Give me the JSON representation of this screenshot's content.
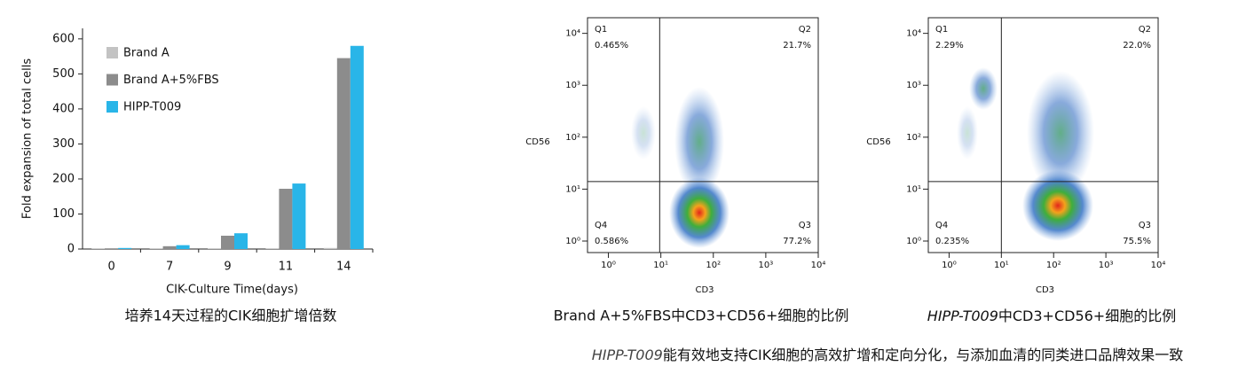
{
  "chart_data": [
    {
      "type": "bar",
      "title": "培养14天过程的CIK细胞扩增倍数",
      "x_label": "CIK-Culture Time(days)",
      "y_label": "Fold expansion of total cells",
      "categories": [
        "0",
        "7",
        "9",
        "11",
        "14"
      ],
      "series": [
        {
          "name": "Brand A",
          "color": "#c3c3c3",
          "values": [
            1,
            1,
            2,
            2,
            3
          ]
        },
        {
          "name": "Brand A+5%FBS",
          "color": "#8c8c8c",
          "values": [
            2,
            8,
            38,
            172,
            545
          ]
        },
        {
          "name": "HIPP-T009",
          "color": "#29b5e8",
          "values": [
            3,
            11,
            45,
            187,
            580
          ]
        }
      ],
      "ylim": [
        0,
        630
      ],
      "yticks": [
        0,
        100,
        200,
        300,
        400,
        500,
        600
      ]
    },
    {
      "type": "scatter",
      "title": "Brand A+5%FBS中CD3+CD56+细胞的比例",
      "x_label": "CD3",
      "y_label": "CD56",
      "log_scale": true,
      "xlim": [
        0.4,
        10000
      ],
      "ylim": [
        0.6,
        20000
      ],
      "xticks": [
        {
          "value": 1,
          "label": "10⁰"
        },
        {
          "value": 10,
          "label": "10¹"
        },
        {
          "value": 100,
          "label": "10²"
        },
        {
          "value": 1000,
          "label": "10³"
        },
        {
          "value": 10000,
          "label": "10⁴"
        }
      ],
      "yticks": [
        {
          "value": 1,
          "label": "10⁰"
        },
        {
          "value": 10,
          "label": "10¹"
        },
        {
          "value": 100,
          "label": "10²"
        },
        {
          "value": 1000,
          "label": "10³"
        },
        {
          "value": 10000,
          "label": "10⁴"
        }
      ],
      "gate": {
        "x": 9.5,
        "y": 14
      },
      "quadrants": [
        {
          "name": "Q1",
          "value": 0.465,
          "label": "0.465%"
        },
        {
          "name": "Q2",
          "value": 21.7,
          "label": "21.7%"
        },
        {
          "name": "Q3",
          "value": 77.2,
          "label": "77.2%"
        },
        {
          "name": "Q4",
          "value": 0.586,
          "label": "0.586%"
        }
      ]
    },
    {
      "type": "scatter",
      "title": {
        "italic": "HIPP-T009",
        "text": "中CD3+CD56+细胞的比例"
      },
      "x_label": "CD3",
      "y_label": "CD56",
      "log_scale": true,
      "xlim": [
        0.4,
        10000
      ],
      "ylim": [
        0.6,
        20000
      ],
      "xticks": [
        {
          "value": 1,
          "label": "10⁰"
        },
        {
          "value": 10,
          "label": "10¹"
        },
        {
          "value": 100,
          "label": "10²"
        },
        {
          "value": 1000,
          "label": "10³"
        },
        {
          "value": 10000,
          "label": "10⁴"
        }
      ],
      "yticks": [
        {
          "value": 1,
          "label": "10⁰"
        },
        {
          "value": 10,
          "label": "10¹"
        },
        {
          "value": 100,
          "label": "10²"
        },
        {
          "value": 1000,
          "label": "10³"
        },
        {
          "value": 10000,
          "label": "10⁴"
        }
      ],
      "gate": {
        "x": 10,
        "y": 14
      },
      "quadrants": [
        {
          "name": "Q1",
          "value": 2.29,
          "label": "2.29%"
        },
        {
          "name": "Q2",
          "value": 22.0,
          "label": "22.0%"
        },
        {
          "name": "Q3",
          "value": 75.5,
          "label": "75.5%"
        },
        {
          "name": "Q4",
          "value": 0.235,
          "label": "0.235%"
        }
      ]
    }
  ],
  "footer": {
    "italic": "HIPP-T009",
    "text": "能有效地支持CIK细胞的高效扩增和定向分化，与添加血清的同类进口品牌效果一致"
  }
}
